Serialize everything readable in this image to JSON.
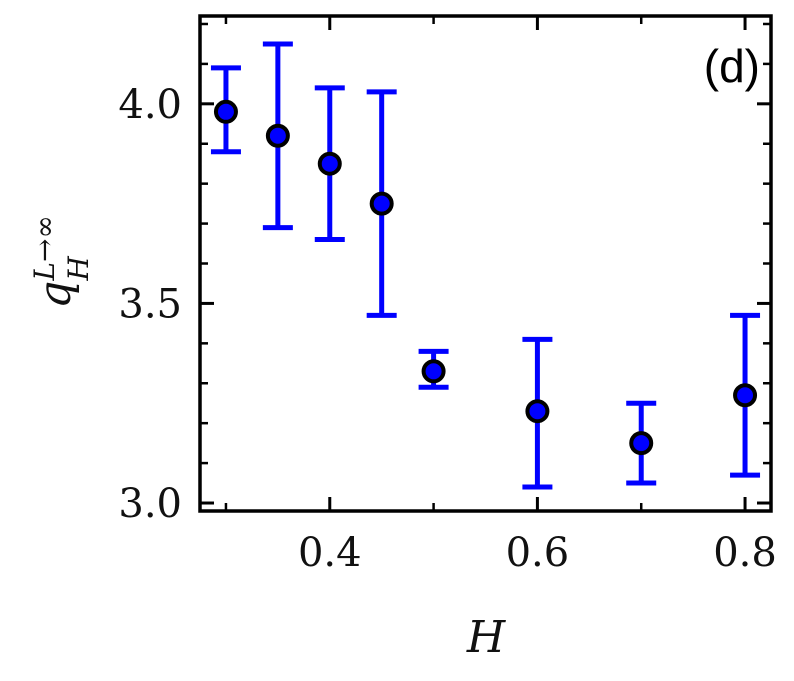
{
  "chart_data": {
    "type": "scatter",
    "panel_label": "(d)",
    "xlabel": "H",
    "ylabel": {
      "base": "q",
      "subscript": "H",
      "superscript": "L→∞"
    },
    "xlim": [
      0.275,
      0.825
    ],
    "ylim": [
      2.98,
      4.22
    ],
    "xticks": [
      0.4,
      0.6,
      0.8
    ],
    "xtick_labels": [
      "0.4",
      "0.6",
      "0.8"
    ],
    "xminor_ticks": [
      0.3,
      0.5,
      0.7
    ],
    "yticks": [
      3.0,
      3.5,
      4.0
    ],
    "ytick_labels": [
      "3.0",
      "3.5",
      "4.0"
    ],
    "grid": false,
    "colors": {
      "marker_fill": "#0000ff",
      "marker_edge": "#000000",
      "errorbar": "#0000ff"
    },
    "points": [
      {
        "x": 0.3,
        "y": 3.98,
        "ylow": 3.88,
        "yhigh": 4.09
      },
      {
        "x": 0.35,
        "y": 3.92,
        "ylow": 3.69,
        "yhigh": 4.15
      },
      {
        "x": 0.4,
        "y": 3.85,
        "ylow": 3.66,
        "yhigh": 4.04
      },
      {
        "x": 0.45,
        "y": 3.75,
        "ylow": 3.47,
        "yhigh": 4.03
      },
      {
        "x": 0.5,
        "y": 3.33,
        "ylow": 3.29,
        "yhigh": 3.38
      },
      {
        "x": 0.6,
        "y": 3.23,
        "ylow": 3.04,
        "yhigh": 3.41
      },
      {
        "x": 0.7,
        "y": 3.15,
        "ylow": 3.05,
        "yhigh": 3.25
      },
      {
        "x": 0.8,
        "y": 3.27,
        "ylow": 3.07,
        "yhigh": 3.47
      }
    ]
  }
}
